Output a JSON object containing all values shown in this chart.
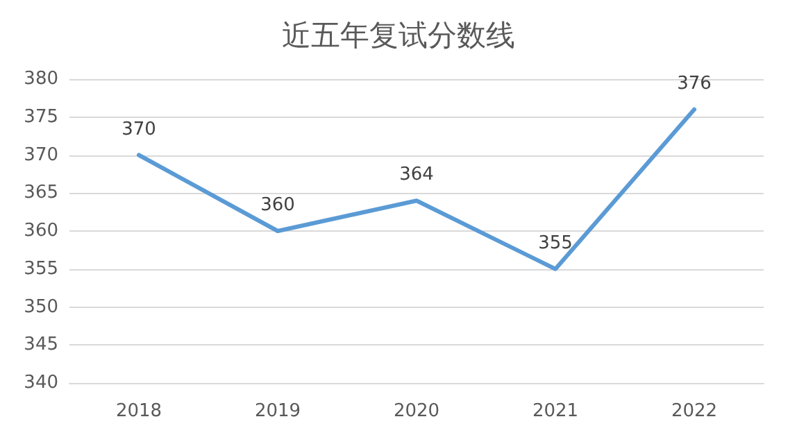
{
  "chart_data": {
    "type": "line",
    "title": "近五年复试分数线",
    "categories": [
      "2018",
      "2019",
      "2020",
      "2021",
      "2022"
    ],
    "series": [
      {
        "color": "#5b9bd5",
        "values": [
          370,
          360,
          364,
          355,
          376
        ]
      }
    ],
    "ylim": [
      340,
      380
    ],
    "yticks": [
      340,
      345,
      350,
      355,
      360,
      365,
      370,
      375,
      380
    ],
    "grid": "y",
    "data_labels": true,
    "marker": "none",
    "line_style": "solid"
  }
}
